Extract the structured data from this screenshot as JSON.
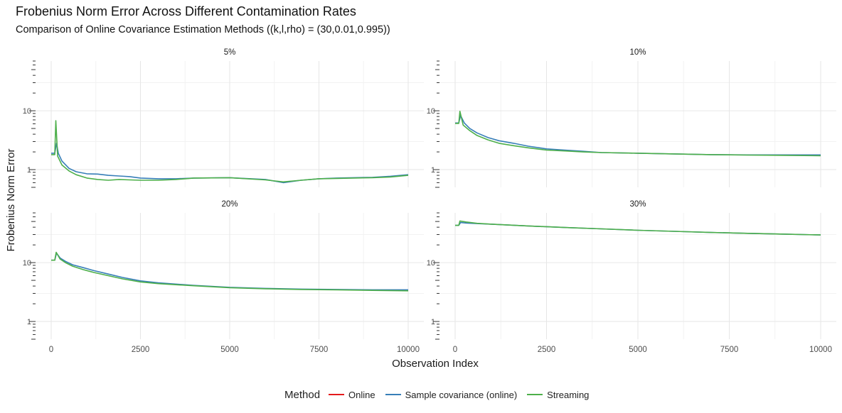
{
  "title": "Frobenius Norm Error Across Different Contamination Rates",
  "subtitle": "Comparison of Online Covariance Estimation Methods ((k,l,rho) = (30,0.01,0.995))",
  "chart_data": {
    "type": "line",
    "xlabel": "Observation Index",
    "ylabel": "Frobenius Norm Error",
    "x_scale": "linear",
    "y_scale": "log10",
    "xlim": [
      0,
      10000
    ],
    "ylim": [
      0.5,
      70
    ],
    "x_ticks": [
      0,
      2500,
      5000,
      7500,
      10000
    ],
    "x_tick_labels": [
      "0",
      "2500",
      "5000",
      "7500",
      "10000"
    ],
    "y_ticks": [
      1,
      10
    ],
    "y_tick_labels": [
      "1",
      "10"
    ],
    "grid": true,
    "legend": {
      "title": "Method",
      "position": "bottom",
      "entries": [
        {
          "name": "Online",
          "color": "#e41a1c"
        },
        {
          "name": "Sample covariance (online)",
          "color": "#377eb8"
        },
        {
          "name": "Streaming",
          "color": "#4daf4a"
        }
      ]
    },
    "panels": [
      {
        "label": "5%",
        "series": [
          {
            "name": "Sample covariance (online)",
            "x": [
              0,
              100,
              150,
              200,
              300,
              500,
              700,
              1000,
              1300,
              1600,
              1900,
              2200,
              2500,
              3000,
              3500,
              4000,
              5000,
              6000,
              6500,
              7000,
              7500,
              8000,
              9000,
              9500,
              10000
            ],
            "y": [
              1.9,
              1.9,
              2.8,
              1.9,
              1.4,
              1.05,
              0.92,
              0.85,
              0.84,
              0.8,
              0.78,
              0.76,
              0.72,
              0.7,
              0.7,
              0.72,
              0.73,
              0.68,
              0.6,
              0.66,
              0.7,
              0.72,
              0.74,
              0.77,
              0.82
            ]
          },
          {
            "name": "Streaming",
            "x": [
              0,
              100,
              130,
              180,
              300,
              500,
              700,
              1000,
              1300,
              1600,
              1900,
              2200,
              2500,
              3000,
              3500,
              4000,
              5000,
              6000,
              6500,
              7000,
              7500,
              8000,
              9000,
              9500,
              10000
            ],
            "y": [
              1.8,
              1.8,
              6.8,
              1.7,
              1.2,
              0.95,
              0.82,
              0.72,
              0.68,
              0.66,
              0.68,
              0.67,
              0.66,
              0.66,
              0.68,
              0.72,
              0.73,
              0.67,
              0.62,
              0.66,
              0.7,
              0.71,
              0.73,
              0.75,
              0.8
            ]
          }
        ]
      },
      {
        "label": "10%",
        "series": [
          {
            "name": "Sample covariance (online)",
            "x": [
              0,
              100,
              150,
              250,
              400,
              600,
              900,
              1200,
              1600,
              2000,
              2500,
              3000,
              3500,
              4000,
              5000,
              6000,
              7000,
              8000,
              9000,
              10000
            ],
            "y": [
              6.2,
              6.2,
              8.3,
              6.2,
              5.0,
              4.2,
              3.5,
              3.1,
              2.8,
              2.5,
              2.25,
              2.15,
              2.05,
              1.95,
              1.9,
              1.85,
              1.8,
              1.78,
              1.78,
              1.78
            ]
          },
          {
            "name": "Streaming",
            "x": [
              0,
              100,
              130,
              220,
              400,
              600,
              900,
              1200,
              1600,
              2000,
              2500,
              3000,
              3500,
              4000,
              5000,
              6000,
              7000,
              8000,
              9000,
              10000
            ],
            "y": [
              6.1,
              6.1,
              9.8,
              5.7,
              4.6,
              3.8,
              3.2,
              2.8,
              2.55,
              2.35,
              2.15,
              2.08,
              2.0,
              1.95,
              1.9,
              1.85,
              1.8,
              1.77,
              1.75,
              1.72
            ]
          }
        ]
      },
      {
        "label": "20%",
        "series": [
          {
            "name": "Sample covariance (online)",
            "x": [
              0,
              100,
              150,
              250,
              400,
              600,
              900,
              1200,
              1600,
              2000,
              2500,
              3000,
              4000,
              5000,
              6000,
              7000,
              8000,
              9000,
              10000
            ],
            "y": [
              11,
              11,
              14.5,
              12,
              10.5,
              9.2,
              8.2,
              7.3,
              6.4,
              5.6,
              4.9,
              4.55,
              4.1,
              3.8,
              3.65,
              3.55,
              3.5,
              3.45,
              3.45
            ]
          },
          {
            "name": "Streaming",
            "x": [
              0,
              100,
              140,
              250,
              400,
              600,
              900,
              1200,
              1600,
              2000,
              2500,
              3000,
              4000,
              5000,
              6000,
              7000,
              8000,
              9000,
              10000
            ],
            "y": [
              11,
              11,
              15,
              11.5,
              10,
              8.7,
              7.6,
              6.8,
              6.0,
              5.3,
              4.7,
              4.4,
              4.05,
              3.75,
              3.6,
              3.5,
              3.45,
              3.38,
              3.32
            ]
          }
        ]
      },
      {
        "label": "30%",
        "series": [
          {
            "name": "Sample covariance (online)",
            "x": [
              0,
              100,
              150,
              300,
              600,
              1000,
              2000,
              3000,
              4000,
              5000,
              6000,
              7000,
              8000,
              9000,
              10000
            ],
            "y": [
              43,
              43,
              48,
              47,
              46,
              45,
              42,
              39.5,
              37.5,
              35.5,
              34,
              32.5,
              31.5,
              30.5,
              29.5
            ]
          },
          {
            "name": "Streaming",
            "x": [
              0,
              100,
              130,
              300,
              600,
              1000,
              2000,
              3000,
              4000,
              5000,
              6000,
              7000,
              8000,
              9000,
              10000
            ],
            "y": [
              43,
              43,
              51,
              49,
              46.5,
              45,
              42,
              39.5,
              37.5,
              35.5,
              34,
              32.5,
              31.5,
              30.5,
              29.5
            ]
          }
        ]
      }
    ]
  }
}
